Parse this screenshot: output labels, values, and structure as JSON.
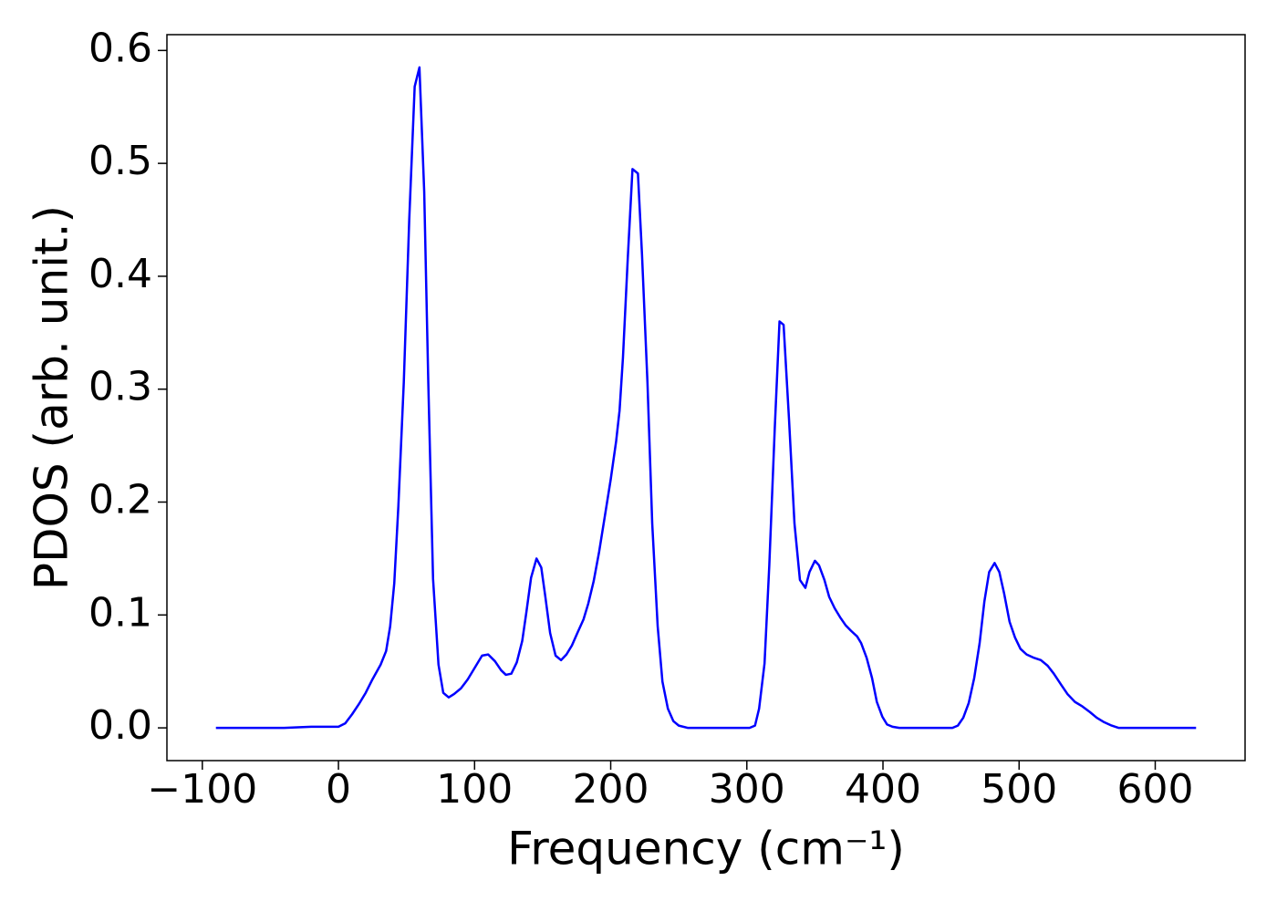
{
  "chart_data": {
    "type": "line",
    "xlabel": "Frequency (cm⁻¹)",
    "ylabel": "PDOS (arb. unit.)",
    "color": "#0000ff",
    "x": [
      -90,
      -40,
      -20,
      0,
      5,
      10,
      15,
      20,
      25,
      31,
      35,
      38,
      41,
      44,
      48,
      52,
      56,
      59.5,
      63,
      66,
      69.5,
      73.5,
      77,
      81,
      85,
      90,
      95,
      100,
      105.5,
      110,
      115,
      119.5,
      123,
      127,
      131,
      135,
      138,
      141.5,
      145.5,
      149,
      152,
      155.5,
      159.5,
      163.5,
      167.5,
      171.5,
      175.5,
      180,
      183.5,
      187.5,
      191.5,
      195.5,
      200,
      204,
      206.5,
      209,
      212.5,
      216,
      220,
      223,
      227,
      230.5,
      234.5,
      238,
      242,
      246,
      250,
      256.5,
      302,
      306,
      309,
      313,
      316.5,
      320.5,
      324,
      327,
      331,
      335,
      339,
      343,
      346,
      350,
      353,
      357,
      360.5,
      364.5,
      368.5,
      372.5,
      376.5,
      381,
      384,
      388,
      392,
      395.5,
      399.5,
      403,
      407,
      412,
      451,
      455,
      459,
      463,
      467,
      471,
      474.5,
      478,
      482,
      485.5,
      489,
      493,
      497,
      501,
      505.5,
      511,
      516,
      521,
      525.5,
      531,
      535.5,
      541,
      546.5,
      552,
      557,
      562.5,
      568,
      573,
      630
    ],
    "values": [
      0,
      0,
      0.001,
      0.001,
      0.004,
      0.012,
      0.021,
      0.031,
      0.043,
      0.056,
      0.068,
      0.09,
      0.128,
      0.196,
      0.306,
      0.45,
      0.568,
      0.585,
      0.475,
      0.306,
      0.132,
      0.056,
      0.031,
      0.027,
      0.03,
      0.035,
      0.043,
      0.053,
      0.064,
      0.065,
      0.059,
      0.051,
      0.047,
      0.048,
      0.058,
      0.077,
      0.102,
      0.133,
      0.15,
      0.142,
      0.116,
      0.084,
      0.064,
      0.06,
      0.065,
      0.073,
      0.084,
      0.096,
      0.11,
      0.13,
      0.156,
      0.186,
      0.22,
      0.254,
      0.281,
      0.328,
      0.415,
      0.495,
      0.491,
      0.419,
      0.306,
      0.181,
      0.09,
      0.041,
      0.017,
      0.006,
      0.002,
      0,
      0,
      0.002,
      0.017,
      0.057,
      0.144,
      0.265,
      0.36,
      0.357,
      0.273,
      0.181,
      0.131,
      0.124,
      0.138,
      0.148,
      0.144,
      0.131,
      0.116,
      0.106,
      0.098,
      0.091,
      0.086,
      0.081,
      0.075,
      0.062,
      0.044,
      0.023,
      0.01,
      0.003,
      0.001,
      0,
      0,
      0.002,
      0.009,
      0.022,
      0.044,
      0.075,
      0.112,
      0.138,
      0.146,
      0.138,
      0.119,
      0.094,
      0.08,
      0.07,
      0.065,
      0.062,
      0.06,
      0.055,
      0.048,
      0.038,
      0.03,
      0.023,
      0.019,
      0.014,
      0.009,
      0.005,
      0.002,
      0,
      0
    ],
    "xlim": [
      -126,
      666
    ],
    "ylim": [
      -0.029,
      0.614
    ],
    "xticks": [
      {
        "value": -100,
        "label": "−100"
      },
      0,
      100,
      200,
      300,
      400,
      500,
      600
    ],
    "yticks": [
      {
        "value": 0,
        "label": "0.0"
      },
      0.1,
      0.2,
      0.3,
      0.4,
      0.5,
      0.6
    ]
  }
}
